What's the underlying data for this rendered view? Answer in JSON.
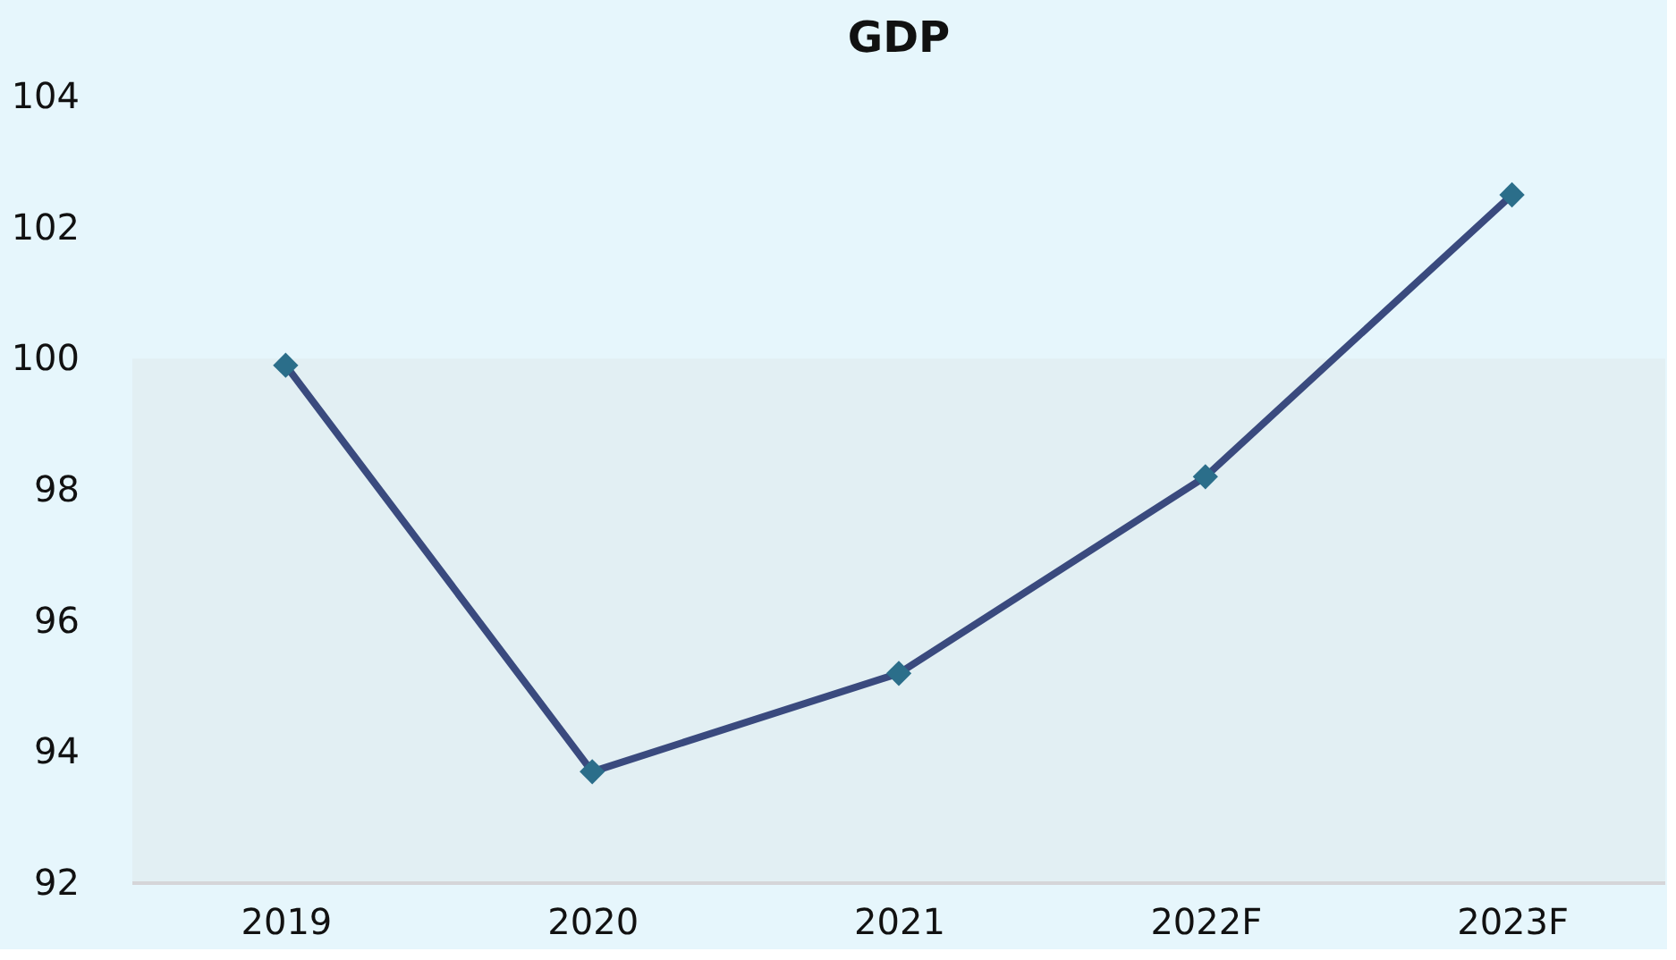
{
  "chart_data": {
    "type": "line",
    "title": "GDP",
    "categories": [
      "2019",
      "2020",
      "2021",
      "2022F",
      "2023F"
    ],
    "series": [
      {
        "color": "#3a4a7e",
        "values": [
          99.9,
          93.7,
          95.2,
          98.2,
          102.5
        ]
      }
    ],
    "ylim": [
      92,
      104
    ],
    "yticks": [
      92,
      94,
      96,
      98,
      100,
      102,
      104
    ],
    "bands": [
      {
        "axis": "y",
        "from": 92,
        "to": 100,
        "color": "#e2eff3"
      }
    ],
    "marker": "diamond",
    "grid": false
  }
}
